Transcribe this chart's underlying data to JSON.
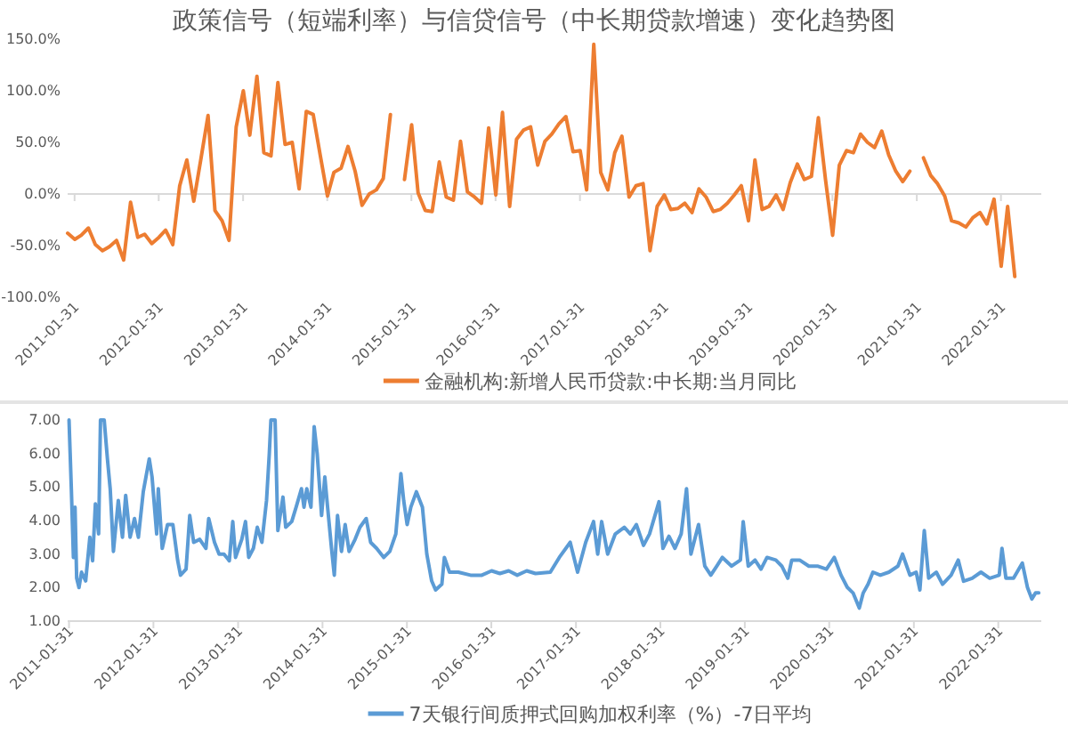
{
  "chart_data": [
    {
      "type": "line",
      "title": "政策信号（短端利率）与信贷信号（中长期贷款增速）变化趋势图",
      "legend": "bottom",
      "line_style": "solid",
      "marker": "none",
      "x": [
        "2011-01",
        "2011-02",
        "2011-03",
        "2011-04",
        "2011-05",
        "2011-06",
        "2011-07",
        "2011-08",
        "2011-09",
        "2011-10",
        "2011-11",
        "2011-12",
        "2012-01",
        "2012-02",
        "2012-03",
        "2012-04",
        "2012-05",
        "2012-06",
        "2012-07",
        "2012-08",
        "2012-09",
        "2012-10",
        "2012-11",
        "2012-12",
        "2013-01",
        "2013-02",
        "2013-03",
        "2013-04",
        "2013-05",
        "2013-06",
        "2013-07",
        "2013-08",
        "2013-09",
        "2013-10",
        "2013-11",
        "2013-12",
        "2014-01",
        "2014-02",
        "2014-03",
        "2014-04",
        "2014-05",
        "2014-06",
        "2014-07",
        "2014-08",
        "2014-09",
        "2014-10",
        "2014-11",
        "2014-12",
        "2015-01",
        "2015-02",
        "2015-03",
        "2015-04",
        "2015-05",
        "2015-06",
        "2015-07",
        "2015-08",
        "2015-09",
        "2015-10",
        "2015-11",
        "2015-12",
        "2016-01",
        "2016-02",
        "2016-03",
        "2016-04",
        "2016-05",
        "2016-06",
        "2016-07",
        "2016-08",
        "2016-09",
        "2016-10",
        "2016-11",
        "2016-12",
        "2017-01",
        "2017-02",
        "2017-03",
        "2017-04",
        "2017-05",
        "2017-06",
        "2017-07",
        "2017-08",
        "2017-09",
        "2017-10",
        "2017-11",
        "2017-12",
        "2018-01",
        "2018-02",
        "2018-03",
        "2018-04",
        "2018-05",
        "2018-06",
        "2018-07",
        "2018-08",
        "2018-09",
        "2018-10",
        "2018-11",
        "2018-12",
        "2019-01",
        "2019-02",
        "2019-03",
        "2019-04",
        "2019-05",
        "2019-06",
        "2019-07",
        "2019-08",
        "2019-09",
        "2019-10",
        "2019-11",
        "2019-12",
        "2020-01",
        "2020-02",
        "2020-03",
        "2020-04",
        "2020-05",
        "2020-06",
        "2020-07",
        "2020-08",
        "2020-09",
        "2020-10",
        "2020-11",
        "2020-12",
        "2021-01",
        "2021-02",
        "2021-03",
        "2021-04",
        "2021-05",
        "2021-06",
        "2021-07",
        "2021-08",
        "2021-09",
        "2021-10",
        "2021-11",
        "2021-12",
        "2022-01",
        "2022-02",
        "2022-03",
        "2022-04"
      ],
      "series": [
        {
          "name": "金融机构:新增人民币贷款:中长期:当月同比",
          "color": "#ed7d31",
          "values": [
            -38,
            -44,
            -40,
            -33,
            -49,
            -55,
            -51,
            -45,
            -64,
            -8,
            -42,
            -39,
            -48,
            -42,
            -35,
            -49,
            8,
            33,
            -7,
            34,
            76,
            -16,
            -26,
            -45,
            65,
            100,
            57,
            114,
            40,
            37,
            108,
            48,
            50,
            5,
            80,
            77,
            37,
            -2,
            21,
            25,
            46,
            22,
            -11,
            0,
            4,
            15,
            77,
            null,
            14,
            67,
            1,
            -16,
            -17,
            31,
            -3,
            -6,
            51,
            2,
            -3,
            -9,
            64,
            -1,
            79,
            -12,
            53,
            62,
            65,
            28,
            51,
            58,
            68,
            75,
            41,
            42,
            4,
            145,
            21,
            4,
            40,
            56,
            -3,
            8,
            10,
            -55,
            -12,
            -1,
            -15,
            -14,
            -9,
            -18,
            5,
            -3,
            -17,
            -15,
            -9,
            -1,
            8,
            -26,
            33,
            -15,
            -12,
            -1,
            -15,
            11,
            29,
            14,
            17,
            74,
            14,
            -40,
            28,
            42,
            40,
            58,
            50,
            45,
            61,
            38,
            22,
            12,
            22,
            null,
            35,
            18,
            10,
            -2,
            -26,
            -28,
            -32,
            -23,
            -18,
            -29,
            -5,
            -70,
            -12,
            -80
          ]
        }
      ],
      "xlim": [
        "2011-01-01",
        "2022-07-25"
      ],
      "xticks": [
        "2011-01-31",
        "2012-01-31",
        "2013-01-31",
        "2014-01-31",
        "2015-01-31",
        "2016-01-31",
        "2017-01-31",
        "2018-01-31",
        "2019-01-31",
        "2020-01-31",
        "2021-01-31",
        "2022-01-31"
      ],
      "ylim": [
        -100,
        150
      ],
      "yticks": [
        {
          "value": -100,
          "label": "-100.0%"
        },
        {
          "value": -50,
          "label": "-50.0%"
        },
        {
          "value": 0,
          "label": "0.0%"
        },
        {
          "value": 50,
          "label": "50.0%"
        },
        {
          "value": 100,
          "label": "100.0%"
        },
        {
          "value": 150,
          "label": "150.0%"
        }
      ]
    },
    {
      "type": "line",
      "legend": "bottom",
      "line_style": "solid",
      "marker": "none",
      "series": [
        {
          "name": "7天银行间质押式回购加权利率（%）-7日平均",
          "color": "#5b9bd5",
          "x": [
            "2011-01-31",
            "2011-02-10",
            "2011-02-19",
            "2011-02-26",
            "2011-03-05",
            "2011-03-15",
            "2011-03-26",
            "2011-04-13",
            "2011-05-01",
            "2011-05-13",
            "2011-05-25",
            "2011-06-08",
            "2011-06-16",
            "2011-07-02",
            "2011-07-16",
            "2011-07-28",
            "2011-08-11",
            "2011-09-01",
            "2011-09-19",
            "2011-10-03",
            "2011-10-22",
            "2011-11-10",
            "2011-11-27",
            "2011-12-18",
            "2012-01-13",
            "2012-01-25",
            "2012-02-14",
            "2012-02-21",
            "2012-03-09",
            "2012-04-01",
            "2012-04-24",
            "2012-05-15",
            "2012-05-27",
            "2012-06-20",
            "2012-07-06",
            "2012-07-23",
            "2012-08-18",
            "2012-09-14",
            "2012-09-26",
            "2012-10-21",
            "2012-11-10",
            "2012-12-01",
            "2012-12-24",
            "2013-01-08",
            "2013-01-20",
            "2013-02-16",
            "2013-03-04",
            "2013-03-18",
            "2013-04-07",
            "2013-04-24",
            "2013-05-14",
            "2013-06-03",
            "2013-06-15",
            "2013-06-22",
            "2013-07-10",
            "2013-07-22",
            "2013-08-13",
            "2013-08-25",
            "2013-09-20",
            "2013-10-09",
            "2013-11-01",
            "2013-11-12",
            "2013-11-24",
            "2013-12-12",
            "2013-12-26",
            "2014-01-08",
            "2014-01-27",
            "2014-02-10",
            "2014-02-22",
            "2014-03-11",
            "2014-03-23",
            "2014-04-06",
            "2014-04-23",
            "2014-05-09",
            "2014-05-26",
            "2014-06-21",
            "2014-07-12",
            "2014-08-08",
            "2014-08-27",
            "2014-09-22",
            "2014-10-23",
            "2014-11-18",
            "2014-12-14",
            "2015-01-05",
            "2015-01-17",
            "2015-02-01",
            "2015-02-17",
            "2015-03-13",
            "2015-04-08",
            "2015-04-27",
            "2015-05-18",
            "2015-06-04",
            "2015-07-01",
            "2015-07-12",
            "2015-08-03",
            "2015-09-10",
            "2015-11-02",
            "2015-12-21",
            "2016-02-01",
            "2016-03-08",
            "2016-04-15",
            "2016-05-22",
            "2016-07-02",
            "2016-08-09",
            "2016-10-12",
            "2016-11-20",
            "2017-01-06",
            "2017-02-07",
            "2017-03-14",
            "2017-04-17",
            "2017-05-05",
            "2017-05-22",
            "2017-06-17",
            "2017-07-20",
            "2017-08-28",
            "2017-09-23",
            "2017-10-19",
            "2017-11-19",
            "2017-12-15",
            "2018-01-25",
            "2018-02-11",
            "2018-03-09",
            "2018-04-04",
            "2018-05-01",
            "2018-05-24",
            "2018-06-12",
            "2018-07-15",
            "2018-08-11",
            "2018-09-06",
            "2018-10-02",
            "2018-10-26",
            "2018-12-05",
            "2019-01-12",
            "2019-01-24",
            "2019-02-15",
            "2019-03-16",
            "2019-04-11",
            "2019-05-07",
            "2019-06-14",
            "2019-07-10",
            "2019-08-05",
            "2019-08-22",
            "2019-09-25",
            "2019-11-04",
            "2019-12-11",
            "2020-01-19",
            "2020-02-22",
            "2020-03-22",
            "2020-04-18",
            "2020-05-13",
            "2020-06-09",
            "2020-06-26",
            "2020-07-17",
            "2020-08-07",
            "2020-09-08",
            "2020-10-15",
            "2020-11-23",
            "2020-12-13",
            "2021-01-14",
            "2021-02-10",
            "2021-02-26",
            "2021-03-17",
            "2021-04-05",
            "2021-05-08",
            "2021-06-04",
            "2021-07-11",
            "2021-08-11",
            "2021-09-03",
            "2021-10-10",
            "2021-11-17",
            "2021-12-25",
            "2022-02-04",
            "2022-02-16",
            "2022-03-05",
            "2022-04-07",
            "2022-05-15",
            "2022-06-06",
            "2022-06-25",
            "2022-07-11",
            "2022-07-25"
          ],
          "values": [
            7.0,
            4.95,
            2.9,
            4.4,
            2.28,
            2.0,
            2.46,
            2.2,
            3.5,
            2.8,
            4.5,
            3.6,
            7.0,
            7.0,
            5.84,
            4.95,
            3.08,
            4.6,
            3.5,
            4.75,
            3.5,
            4.06,
            3.5,
            4.86,
            5.84,
            5.3,
            3.6,
            4.95,
            3.17,
            3.88,
            3.88,
            2.8,
            2.37,
            2.55,
            4.15,
            3.35,
            3.44,
            3.17,
            4.06,
            3.35,
            3.0,
            3.0,
            2.8,
            3.97,
            2.9,
            3.44,
            3.97,
            2.9,
            3.17,
            3.8,
            3.35,
            4.6,
            6.0,
            7.0,
            7.0,
            3.7,
            4.7,
            3.8,
            3.97,
            4.4,
            4.95,
            4.4,
            4.95,
            4.4,
            6.8,
            6.0,
            4.15,
            5.3,
            4.4,
            3.17,
            2.37,
            4.15,
            3.08,
            3.88,
            3.08,
            3.44,
            3.8,
            4.06,
            3.35,
            3.17,
            2.9,
            3.08,
            3.6,
            5.4,
            4.6,
            3.88,
            4.4,
            4.86,
            4.4,
            3.0,
            2.2,
            1.93,
            2.1,
            2.9,
            2.46,
            2.46,
            2.37,
            2.37,
            2.5,
            2.42,
            2.5,
            2.37,
            2.5,
            2.42,
            2.46,
            2.9,
            3.35,
            2.46,
            3.35,
            3.97,
            3.0,
            3.97,
            3.0,
            3.6,
            3.8,
            3.6,
            3.88,
            3.26,
            3.6,
            4.56,
            3.17,
            3.53,
            3.17,
            3.6,
            4.95,
            3.0,
            3.88,
            2.64,
            2.37,
            2.64,
            2.9,
            2.64,
            2.82,
            3.97,
            2.64,
            2.82,
            2.55,
            2.9,
            2.82,
            2.64,
            2.28,
            2.82,
            2.82,
            2.64,
            2.64,
            2.55,
            2.9,
            2.37,
            2.01,
            1.84,
            1.39,
            1.84,
            2.1,
            2.46,
            2.37,
            2.46,
            2.64,
            3.0,
            2.37,
            2.46,
            1.93,
            3.7,
            2.28,
            2.46,
            2.1,
            2.37,
            2.82,
            2.19,
            2.28,
            2.46,
            2.28,
            2.37,
            3.17,
            2.28,
            2.28,
            2.73,
            2.01,
            1.66,
            1.84,
            1.84
          ]
        }
      ],
      "xlim": [
        "2011-01-25",
        "2022-08-05"
      ],
      "xticks": [
        "2011-01-31",
        "2012-01-31",
        "2013-01-31",
        "2014-01-31",
        "2015-01-31",
        "2016-01-31",
        "2017-01-31",
        "2018-01-31",
        "2019-01-31",
        "2020-01-31",
        "2021-01-31",
        "2022-01-31"
      ],
      "ylim": [
        1,
        7
      ],
      "yticks": [
        {
          "value": 1,
          "label": "1.00"
        },
        {
          "value": 2,
          "label": "2.00"
        },
        {
          "value": 3,
          "label": "3.00"
        },
        {
          "value": 4,
          "label": "4.00"
        },
        {
          "value": 5,
          "label": "5.00"
        },
        {
          "value": 6,
          "label": "6.00"
        },
        {
          "value": 7,
          "label": "7.00"
        }
      ]
    }
  ]
}
